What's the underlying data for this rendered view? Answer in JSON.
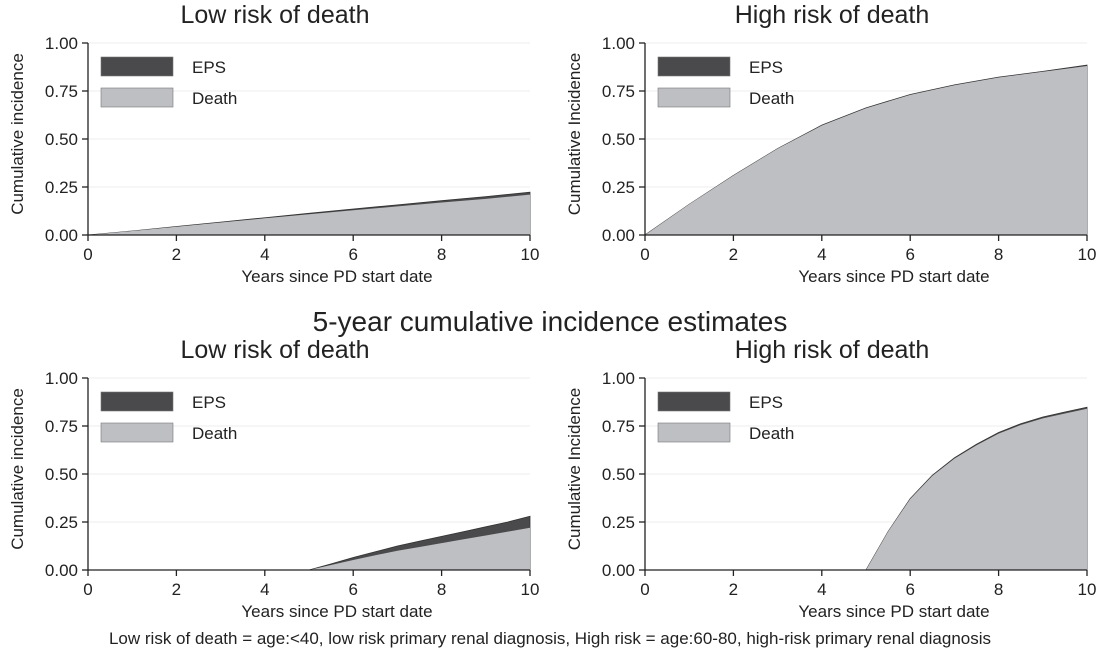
{
  "section_title": "5-year cumulative incidence estimates",
  "footnote": "Low risk of death = age:<40, low risk primary renal diagnosis, High risk = age:60-80, high-risk primary renal diagnosis",
  "colors": {
    "eps": "#4a4a4c",
    "death": "#bebfc2",
    "grid": "#ececec",
    "axis": "#222222"
  },
  "chart_data": [
    {
      "type": "area",
      "title": "Low risk of death",
      "xlabel": "Years since PD start date",
      "ylabel": "Cumulative incidence",
      "xlim": [
        0,
        10
      ],
      "ylim": [
        0,
        1
      ],
      "xticks": [
        "0",
        "2",
        "4",
        "6",
        "8",
        "10"
      ],
      "yticks": [
        "0.00",
        "0.25",
        "0.50",
        "0.75",
        "1.00"
      ],
      "legend": [
        "EPS",
        "Death"
      ],
      "legend_position": "top-left",
      "x": [
        0,
        1,
        2,
        3,
        4,
        5,
        6,
        7,
        8,
        9,
        10
      ],
      "series": [
        {
          "name": "Death",
          "values": [
            0,
            0.021,
            0.043,
            0.065,
            0.087,
            0.108,
            0.129,
            0.149,
            0.169,
            0.188,
            0.21
          ]
        },
        {
          "name": "EPS",
          "values": [
            0,
            0.021,
            0.044,
            0.067,
            0.09,
            0.113,
            0.135,
            0.157,
            0.179,
            0.2,
            0.223
          ]
        }
      ]
    },
    {
      "type": "area",
      "title": "High risk of death",
      "xlabel": "Years since PD start date",
      "ylabel": "Cumulative Incidence",
      "xlim": [
        0,
        10
      ],
      "ylim": [
        0,
        1
      ],
      "xticks": [
        "0",
        "2",
        "4",
        "6",
        "8",
        "10"
      ],
      "yticks": [
        "0.00",
        "0.25",
        "0.50",
        "0.75",
        "1.00"
      ],
      "legend": [
        "EPS",
        "Death"
      ],
      "legend_position": "top-left",
      "x": [
        0,
        1,
        2,
        3,
        4,
        5,
        6,
        7,
        8,
        9,
        10
      ],
      "series": [
        {
          "name": "Death",
          "values": [
            0,
            0.16,
            0.31,
            0.45,
            0.57,
            0.66,
            0.73,
            0.78,
            0.82,
            0.85,
            0.88
          ]
        },
        {
          "name": "EPS",
          "values": [
            0,
            0.16,
            0.31,
            0.45,
            0.572,
            0.662,
            0.732,
            0.782,
            0.822,
            0.852,
            0.885
          ]
        }
      ]
    },
    {
      "type": "area",
      "title": "Low risk of death",
      "xlabel": "Years since PD start date",
      "ylabel": "Cumulative incidence",
      "xlim": [
        0,
        10
      ],
      "ylim": [
        0,
        1
      ],
      "xticks": [
        "0",
        "2",
        "4",
        "6",
        "8",
        "10"
      ],
      "yticks": [
        "0.00",
        "0.25",
        "0.50",
        "0.75",
        "1.00"
      ],
      "legend": [
        "EPS",
        "Death"
      ],
      "legend_position": "top-left",
      "x": [
        0,
        5,
        5.5,
        6,
        6.5,
        7,
        7.5,
        8,
        8.5,
        9,
        9.5,
        10
      ],
      "series": [
        {
          "name": "Death",
          "values": [
            0,
            0,
            0.026,
            0.052,
            0.077,
            0.1,
            0.12,
            0.14,
            0.16,
            0.18,
            0.2,
            0.22
          ]
        },
        {
          "name": "EPS",
          "values": [
            0,
            0,
            0.032,
            0.065,
            0.095,
            0.125,
            0.15,
            0.175,
            0.2,
            0.225,
            0.25,
            0.28
          ]
        }
      ]
    },
    {
      "type": "area",
      "title": "High risk of death",
      "xlabel": "Years since PD start date",
      "ylabel": "Cumulative Incidence",
      "xlim": [
        0,
        10
      ],
      "ylim": [
        0,
        1
      ],
      "xticks": [
        "0",
        "2",
        "4",
        "6",
        "8",
        "10"
      ],
      "yticks": [
        "0.00",
        "0.25",
        "0.50",
        "0.75",
        "1.00"
      ],
      "legend": [
        "EPS",
        "Death"
      ],
      "legend_position": "top-left",
      "x": [
        0,
        5,
        5.5,
        6,
        6.5,
        7,
        7.5,
        8,
        8.5,
        9,
        9.5,
        10
      ],
      "series": [
        {
          "name": "Death",
          "values": [
            0,
            0,
            0.2,
            0.37,
            0.49,
            0.58,
            0.65,
            0.71,
            0.755,
            0.79,
            0.815,
            0.84
          ]
        },
        {
          "name": "EPS",
          "values": [
            0,
            0,
            0.2,
            0.372,
            0.493,
            0.584,
            0.655,
            0.716,
            0.762,
            0.797,
            0.823,
            0.848
          ]
        }
      ]
    }
  ]
}
